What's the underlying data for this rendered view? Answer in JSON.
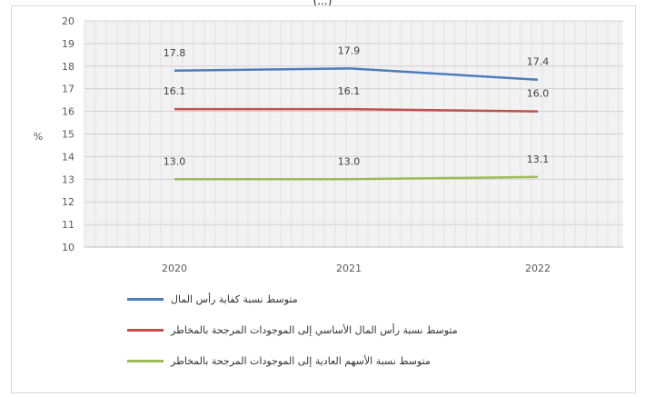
{
  "page_caption": "(...)",
  "chart_data": {
    "type": "line",
    "categories": [
      "2020",
      "2021",
      "2022"
    ],
    "ylabel": "%",
    "ylim": [
      10,
      20
    ],
    "yticks": [
      10,
      11,
      12,
      13,
      14,
      15,
      16,
      17,
      18,
      19,
      20
    ],
    "grid": true,
    "legend_position": "bottom",
    "series": [
      {
        "name": "متوسط نسبة كفاية رأس المال",
        "color": "#4a7ebb",
        "values": [
          17.8,
          17.9,
          17.4
        ],
        "labels": [
          "17.8",
          "17.9",
          "17.4"
        ]
      },
      {
        "name": "متوسط نسبة رأس المال الأساسي إلى الموجودات المرجحة بالمخاطر",
        "color": "#c0504d",
        "values": [
          16.1,
          16.1,
          16.0
        ],
        "labels": [
          "16.1",
          "16.1",
          "16.0"
        ]
      },
      {
        "name": "متوسط نسبة الأسهم العادية إلى الموجودات المرجحة بالمخاطر",
        "color": "#9bbb59",
        "values": [
          13.0,
          13.0,
          13.1
        ],
        "labels": [
          "13.0",
          "13.0",
          "13.1"
        ]
      }
    ]
  }
}
